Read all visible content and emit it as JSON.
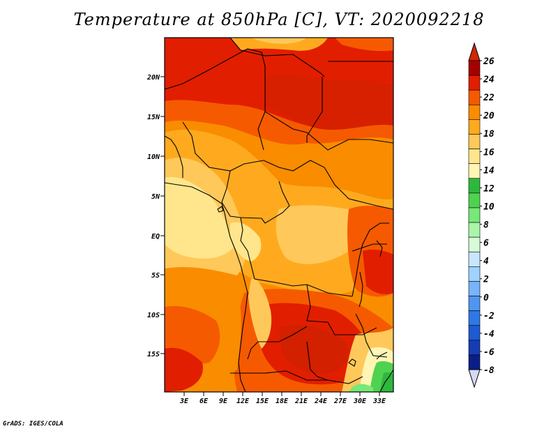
{
  "title": "Temperature at 850hPa [C], VT: 2020092218",
  "credit": "GrADS: IGES/COLA",
  "map": {
    "lat_ticks": [
      "20N",
      "15N",
      "10N",
      "5N",
      "EQ",
      "5S",
      "10S",
      "15S"
    ],
    "lon_ticks": [
      "3E",
      "6E",
      "9E",
      "12E",
      "15E",
      "18E",
      "21E",
      "24E",
      "27E",
      "30E",
      "33E"
    ]
  },
  "colorbar": {
    "labels": [
      "26",
      "24",
      "22",
      "20",
      "18",
      "16",
      "14",
      "12",
      "10",
      "8",
      "6",
      "4",
      "2",
      "0",
      "-2",
      "-4",
      "-6",
      "-8"
    ],
    "colors": [
      "#a50000",
      "#e11e00",
      "#f55a00",
      "#fa8c00",
      "#ffaa1e",
      "#ffc85a",
      "#ffe68c",
      "#fff5b4",
      "#2db83d",
      "#4fd24f",
      "#78e878",
      "#aaf5aa",
      "#d7fad7",
      "#c8e6ff",
      "#a0d2ff",
      "#78b4fa",
      "#5096f0",
      "#2d78e6",
      "#1e5ad2",
      "#143cb4",
      "#0a1e87"
    ],
    "under_color": "#d7d7f5",
    "over_color": "#d22800"
  }
}
